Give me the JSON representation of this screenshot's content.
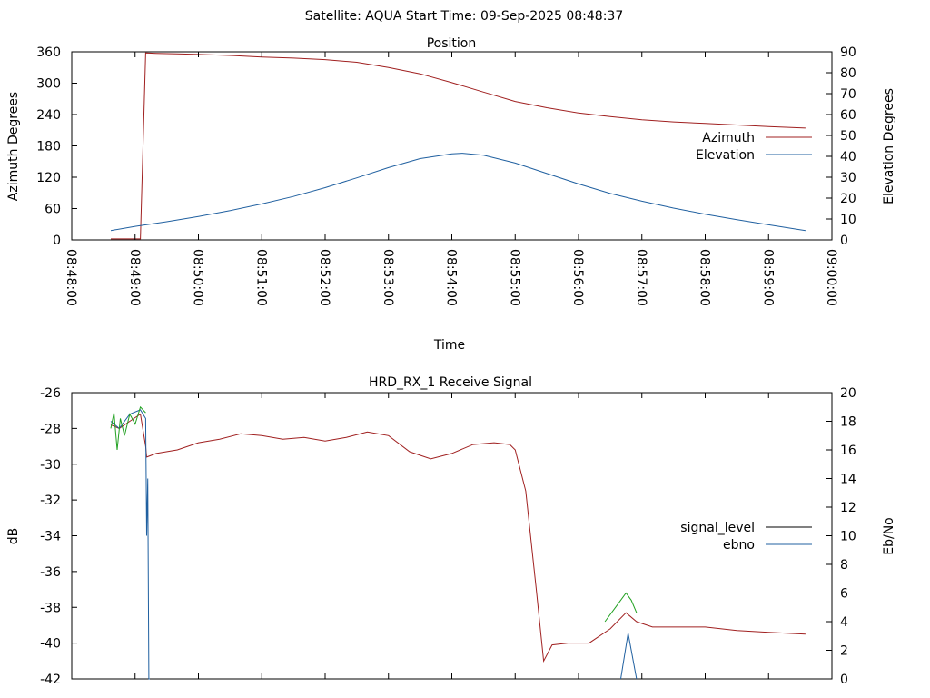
{
  "header": {
    "title": "Satellite: AQUA    Start Time: 09-Sep-2025 08:48:37"
  },
  "chart_data": [
    {
      "type": "line",
      "title": "Position",
      "xlabel": "Time",
      "ylabel": "Azimuth Degrees",
      "y2label": "Elevation Degrees",
      "xlim": [
        "08:48:00",
        "09:00:00"
      ],
      "xticks": [
        "08:48:00",
        "08:49:00",
        "08:50:00",
        "08:51:00",
        "08:52:00",
        "08:53:00",
        "08:54:00",
        "08:55:00",
        "08:56:00",
        "08:57:00",
        "08:58:00",
        "08:59:00",
        "09:00:00"
      ],
      "ylim": [
        0,
        360
      ],
      "yticks": [
        "0",
        "60",
        "120",
        "180",
        "240",
        "300",
        "360"
      ],
      "y2lim": [
        0,
        90
      ],
      "y2ticks": [
        "0",
        "10",
        "20",
        "30",
        "40",
        "50",
        "60",
        "70",
        "80",
        "90"
      ],
      "legend_position": "right",
      "series": [
        {
          "name": "Azimuth",
          "axis": "y",
          "color": "#a02020",
          "x": [
            "08:48:37",
            "08:48:50",
            "08:49:05",
            "08:49:10",
            "08:49:20",
            "08:49:40",
            "08:50:00",
            "08:50:30",
            "08:51:00",
            "08:51:30",
            "08:52:00",
            "08:52:30",
            "08:53:00",
            "08:53:30",
            "08:54:00",
            "08:54:30",
            "08:55:00",
            "08:55:30",
            "08:56:00",
            "08:56:30",
            "08:57:00",
            "08:57:30",
            "08:58:00",
            "08:58:30",
            "08:59:00",
            "08:59:35"
          ],
          "values": [
            2,
            2,
            2,
            358,
            357,
            356,
            355,
            353,
            350,
            348,
            345,
            340,
            330,
            318,
            301,
            283,
            265,
            253,
            243,
            236,
            230,
            226,
            223,
            220,
            217,
            214
          ]
        },
        {
          "name": "Elevation",
          "axis": "y2",
          "color": "#2060a0",
          "x": [
            "08:48:37",
            "08:49:00",
            "08:49:30",
            "08:50:00",
            "08:50:30",
            "08:51:00",
            "08:51:30",
            "08:52:00",
            "08:52:30",
            "08:53:00",
            "08:53:30",
            "08:54:00",
            "08:54:10",
            "08:54:30",
            "08:55:00",
            "08:55:30",
            "08:56:00",
            "08:56:30",
            "08:57:00",
            "08:57:30",
            "08:58:00",
            "08:58:30",
            "08:59:00",
            "08:59:35"
          ],
          "values": [
            4.5,
            6.5,
            8.7,
            11.2,
            14.0,
            17.2,
            20.8,
            25.0,
            29.7,
            34.6,
            38.9,
            41.2,
            41.5,
            40.5,
            36.8,
            31.8,
            26.8,
            22.2,
            18.5,
            15.2,
            12.3,
            9.7,
            7.2,
            4.5
          ]
        }
      ]
    },
    {
      "type": "line",
      "title": "HRD_RX_1 Receive Signal",
      "xlabel": "",
      "ylabel": "dB",
      "y2label": "Eb/No",
      "xlim": [
        "08:48:00",
        "09:00:00"
      ],
      "ylim": [
        -42,
        -26
      ],
      "yticks": [
        "-26",
        "-28",
        "-30",
        "-32",
        "-34",
        "-36",
        "-38",
        "-40",
        "-42"
      ],
      "y2lim": [
        0,
        20
      ],
      "y2ticks": [
        "0",
        "2",
        "4",
        "6",
        "8",
        "10",
        "12",
        "14",
        "16",
        "18",
        "20"
      ],
      "legend_position": "right",
      "series": [
        {
          "name": "signal_level",
          "axis": "y",
          "color": "#a02020",
          "x": [
            "08:48:37",
            "08:48:45",
            "08:48:55",
            "08:49:05",
            "08:49:10",
            "08:49:11",
            "08:49:20",
            "08:49:40",
            "08:50:00",
            "08:50:20",
            "08:50:40",
            "08:51:00",
            "08:51:20",
            "08:51:40",
            "08:52:00",
            "08:52:20",
            "08:52:40",
            "08:53:00",
            "08:53:20",
            "08:53:40",
            "08:54:00",
            "08:54:20",
            "08:54:40",
            "08:54:55",
            "08:55:00",
            "08:55:10",
            "08:55:20",
            "08:55:27",
            "08:55:35",
            "08:55:50",
            "08:56:10",
            "08:56:30",
            "08:56:45",
            "08:56:55",
            "08:57:10",
            "08:57:30",
            "08:58:00",
            "08:58:30",
            "08:59:00",
            "08:59:35"
          ],
          "values": [
            -27.8,
            -28.0,
            -27.6,
            -27.2,
            -29.0,
            -29.6,
            -29.4,
            -29.2,
            -28.8,
            -28.6,
            -28.3,
            -28.4,
            -28.6,
            -28.5,
            -28.7,
            -28.5,
            -28.2,
            -28.4,
            -29.3,
            -29.7,
            -29.4,
            -28.9,
            -28.8,
            -28.9,
            -29.2,
            -31.5,
            -37.0,
            -41.0,
            -40.1,
            -40.0,
            -40.0,
            -39.2,
            -38.3,
            -38.8,
            -39.1,
            -39.1,
            -39.1,
            -39.3,
            -39.4,
            -39.5
          ]
        },
        {
          "name": "ebno",
          "axis": "y2",
          "color": "#2060a0",
          "x": [
            "08:48:37",
            "08:48:45",
            "08:48:55",
            "08:49:05",
            "08:49:10",
            "08:49:11",
            "08:49:12",
            "08:49:13",
            "08:49:14"
          ],
          "values": [
            18.0,
            17.5,
            18.5,
            18.8,
            18.2,
            10.0,
            14.0,
            0.0,
            0.0
          ]
        },
        {
          "name": "",
          "axis": "y2",
          "color": "#20a020",
          "x": [
            "08:48:37",
            "08:48:40",
            "08:48:43",
            "08:48:46",
            "08:48:50",
            "08:48:55",
            "08:49:00",
            "08:49:05",
            "08:49:10"
          ],
          "values": [
            17.5,
            18.6,
            16.0,
            18.2,
            17.0,
            18.5,
            17.8,
            19.0,
            18.6
          ]
        },
        {
          "name": "",
          "axis": "y",
          "color": "#20a020",
          "x": [
            "08:56:25",
            "08:56:35",
            "08:56:45",
            "08:56:50",
            "08:56:55"
          ],
          "values": [
            -38.8,
            -38.0,
            -37.2,
            -37.6,
            -38.3
          ]
        },
        {
          "name": "",
          "axis": "y2",
          "color": "#2060a0",
          "x": [
            "08:56:40",
            "08:56:47",
            "08:56:55"
          ],
          "values": [
            0.0,
            3.2,
            0.0
          ]
        }
      ]
    }
  ]
}
